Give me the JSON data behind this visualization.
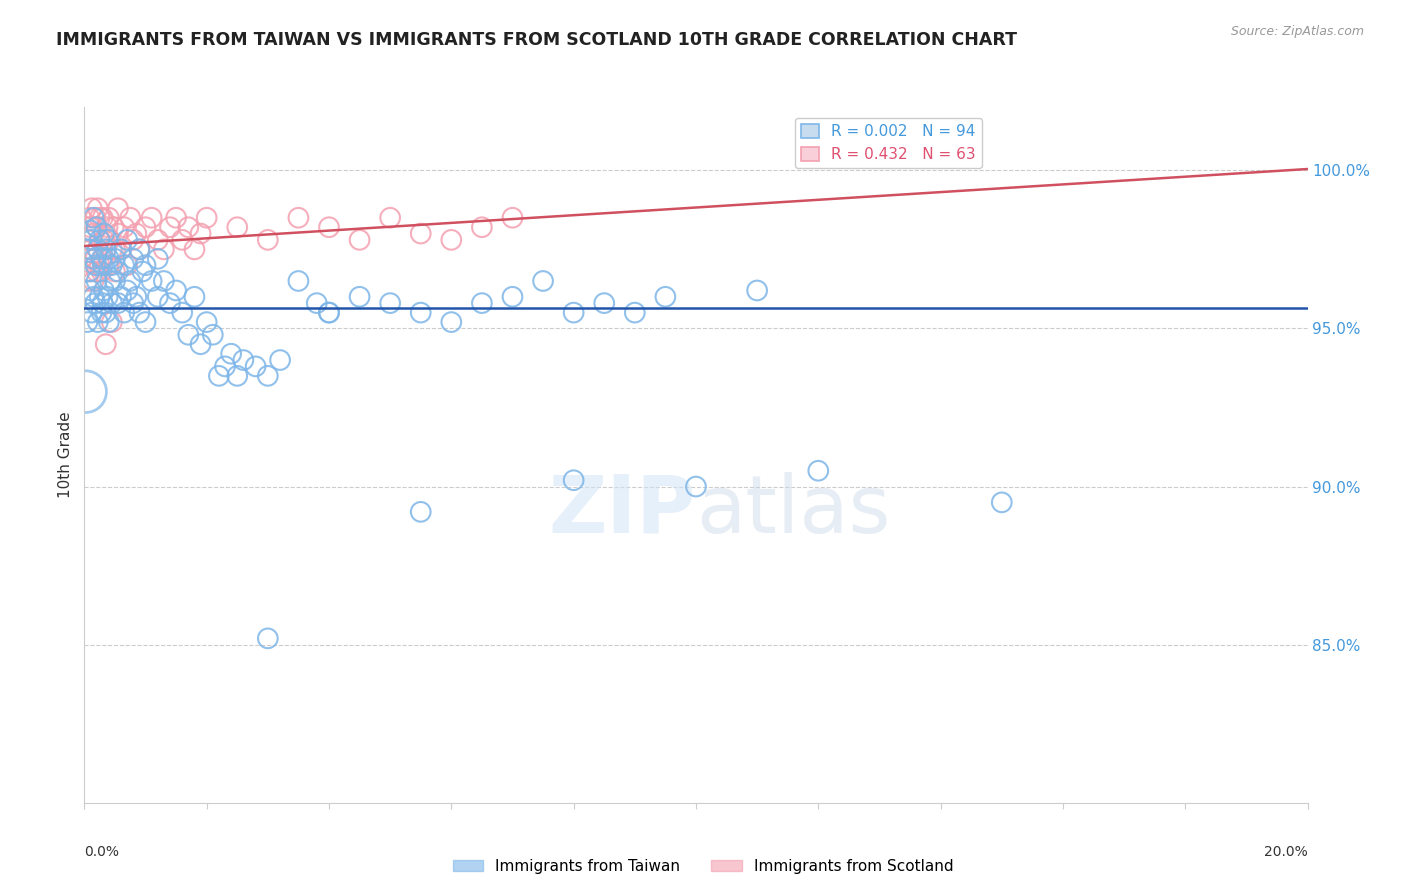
{
  "title": "IMMIGRANTS FROM TAIWAN VS IMMIGRANTS FROM SCOTLAND 10TH GRADE CORRELATION CHART",
  "source": "Source: ZipAtlas.com",
  "ylabel": "10th Grade",
  "legend_taiwan": "Immigrants from Taiwan",
  "legend_scotland": "Immigrants from Scotland",
  "taiwan_R": 0.002,
  "taiwan_N": 94,
  "scotland_R": 0.432,
  "scotland_N": 63,
  "taiwan_color": "#7EB6E8",
  "scotland_color": "#F4A0B0",
  "taiwan_line_color": "#2255AA",
  "scotland_line_color": "#D05060",
  "ytick_labels": [
    "85.0%",
    "90.0%",
    "95.0%",
    "100.0%"
  ],
  "ytick_values": [
    85.0,
    90.0,
    95.0,
    100.0
  ],
  "ylim": [
    80.0,
    102.0
  ],
  "xlim": [
    0.0,
    20.0
  ],
  "watermark_zip": "ZIP",
  "watermark_atlas": "atlas",
  "taiwan_x": [
    0.05,
    0.08,
    0.08,
    0.1,
    0.1,
    0.12,
    0.12,
    0.15,
    0.15,
    0.15,
    0.18,
    0.18,
    0.2,
    0.2,
    0.22,
    0.22,
    0.25,
    0.25,
    0.28,
    0.28,
    0.3,
    0.3,
    0.32,
    0.32,
    0.35,
    0.35,
    0.38,
    0.38,
    0.4,
    0.4,
    0.42,
    0.45,
    0.45,
    0.5,
    0.5,
    0.55,
    0.55,
    0.6,
    0.6,
    0.65,
    0.65,
    0.7,
    0.7,
    0.75,
    0.8,
    0.8,
    0.85,
    0.9,
    0.9,
    0.95,
    1.0,
    1.0,
    1.1,
    1.2,
    1.2,
    1.3,
    1.4,
    1.5,
    1.6,
    1.7,
    1.8,
    1.9,
    2.0,
    2.1,
    2.2,
    2.3,
    2.4,
    2.5,
    2.6,
    2.8,
    3.0,
    3.2,
    3.5,
    3.8,
    4.0,
    4.5,
    5.0,
    5.5,
    6.0,
    6.5,
    7.0,
    7.5,
    8.0,
    8.5,
    9.0,
    9.5,
    10.0,
    11.0,
    12.0,
    15.0,
    3.0,
    4.0,
    5.5,
    8.0
  ],
  "taiwan_y": [
    95.2,
    96.8,
    97.5,
    96.2,
    98.1,
    95.5,
    97.8,
    96.0,
    97.2,
    98.5,
    95.8,
    97.0,
    96.5,
    98.2,
    95.2,
    97.5,
    96.0,
    97.8,
    95.5,
    97.2,
    95.8,
    97.0,
    96.2,
    98.0,
    95.5,
    97.5,
    96.0,
    97.8,
    95.2,
    97.2,
    96.5,
    95.8,
    97.0,
    96.5,
    97.2,
    95.8,
    96.8,
    96.0,
    97.5,
    95.5,
    97.0,
    96.2,
    97.8,
    96.5,
    95.8,
    97.2,
    96.0,
    95.5,
    97.5,
    96.8,
    95.2,
    97.0,
    96.5,
    96.0,
    97.2,
    96.5,
    95.8,
    96.2,
    95.5,
    94.8,
    96.0,
    94.5,
    95.2,
    94.8,
    93.5,
    93.8,
    94.2,
    93.5,
    94.0,
    93.8,
    93.5,
    94.0,
    96.5,
    95.8,
    95.5,
    96.0,
    95.8,
    95.5,
    95.2,
    95.8,
    96.0,
    96.5,
    95.5,
    95.8,
    95.5,
    96.0,
    90.0,
    96.2,
    90.5,
    89.5,
    85.2,
    95.5,
    89.2,
    90.2
  ],
  "taiwan_big_x": [
    0.02
  ],
  "taiwan_big_y": [
    93.0
  ],
  "scotland_x": [
    0.05,
    0.05,
    0.08,
    0.08,
    0.1,
    0.1,
    0.12,
    0.12,
    0.15,
    0.15,
    0.18,
    0.18,
    0.2,
    0.2,
    0.22,
    0.22,
    0.25,
    0.25,
    0.28,
    0.3,
    0.3,
    0.32,
    0.35,
    0.38,
    0.4,
    0.4,
    0.42,
    0.45,
    0.48,
    0.5,
    0.55,
    0.55,
    0.6,
    0.65,
    0.7,
    0.75,
    0.8,
    0.85,
    0.9,
    1.0,
    1.1,
    1.2,
    1.3,
    1.4,
    1.5,
    1.6,
    1.7,
    1.8,
    1.9,
    2.0,
    2.5,
    3.0,
    3.5,
    4.0,
    4.5,
    5.0,
    5.5,
    6.0,
    6.5,
    7.0,
    0.35,
    0.45,
    0.5
  ],
  "scotland_y": [
    96.5,
    97.8,
    97.2,
    98.5,
    96.8,
    98.2,
    97.5,
    98.8,
    96.5,
    98.0,
    97.2,
    98.5,
    96.8,
    98.2,
    97.5,
    98.8,
    97.0,
    98.5,
    96.8,
    97.2,
    98.5,
    97.8,
    97.5,
    98.2,
    97.0,
    98.5,
    97.8,
    97.5,
    98.2,
    97.5,
    98.0,
    98.8,
    97.5,
    98.2,
    97.0,
    98.5,
    97.8,
    98.0,
    97.5,
    98.2,
    98.5,
    97.8,
    97.5,
    98.2,
    98.5,
    97.8,
    98.2,
    97.5,
    98.0,
    98.5,
    98.2,
    97.8,
    98.5,
    98.2,
    97.8,
    98.5,
    98.0,
    97.8,
    98.2,
    98.5,
    94.5,
    95.2,
    96.8
  ]
}
